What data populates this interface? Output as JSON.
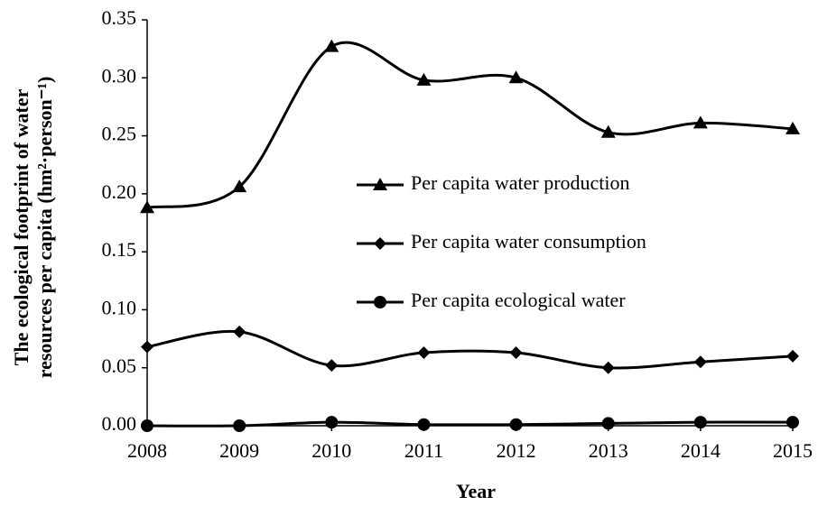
{
  "chart_data": {
    "type": "line",
    "ylabel": [
      "The ecological footprint of water",
      "resources per capita (hm²·person⁻¹)"
    ],
    "xlabel": "Year",
    "x": [
      2008,
      2009,
      2010,
      2011,
      2012,
      2013,
      2014,
      2015
    ],
    "xlim": [
      2008,
      2015
    ],
    "xticks": [
      2008,
      2009,
      2010,
      2011,
      2012,
      2013,
      2014,
      2015
    ],
    "ylim": [
      0,
      0.35
    ],
    "yticks": [
      {
        "value": 0,
        "label": "0.00"
      },
      0.05,
      {
        "value": 0.1,
        "label": "0.10"
      },
      0.15,
      {
        "value": 0.2,
        "label": "0.20"
      },
      0.25,
      {
        "value": 0.3,
        "label": "0.30"
      },
      0.35
    ],
    "smooth": true,
    "series": [
      {
        "name": "Per capita water production",
        "color": "#000000",
        "marker": "triangle",
        "values": [
          0.188,
          0.206,
          0.327,
          0.298,
          0.3,
          0.253,
          0.261,
          0.256
        ]
      },
      {
        "name": "Per capita water consumption",
        "color": "#000000",
        "marker": "diamond",
        "values": [
          0.068,
          0.081,
          0.052,
          0.063,
          0.063,
          0.05,
          0.055,
          0.06
        ]
      },
      {
        "name": "Per capita ecological water",
        "color": "#000000",
        "marker": "circle",
        "values": [
          0.0,
          0.0,
          0.003,
          0.001,
          0.001,
          0.002,
          0.003,
          0.003
        ]
      }
    ]
  }
}
